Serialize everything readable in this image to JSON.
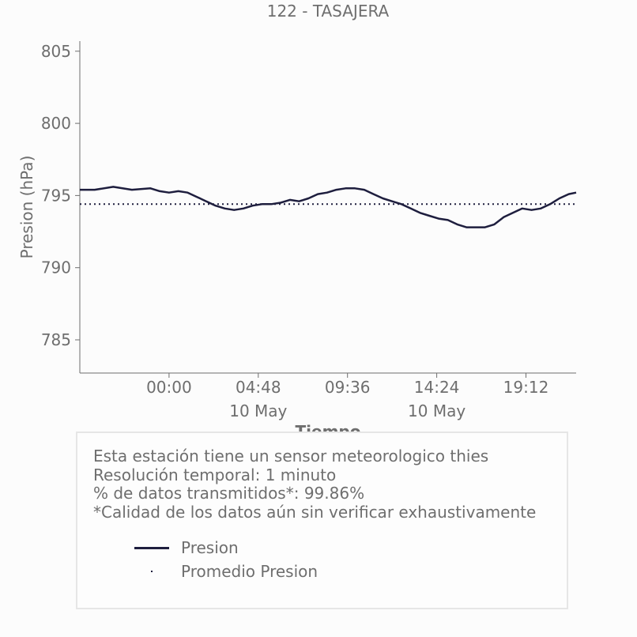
{
  "chart_data": {
    "type": "line",
    "title": "122 - TASAJERA",
    "xlabel": "Tiempo",
    "ylabel": "Presion (hPa)",
    "ylim": [
      782.7,
      805.7
    ],
    "yticks": [
      785,
      790,
      795,
      800,
      805
    ],
    "x_range_hours": [
      -4.8,
      21.9
    ],
    "xticks": [
      {
        "hour": 0.0,
        "label": "00:00",
        "sublabel": ""
      },
      {
        "hour": 4.8,
        "label": "04:48",
        "sublabel": "10 May"
      },
      {
        "hour": 9.6,
        "label": "09:36",
        "sublabel": ""
      },
      {
        "hour": 14.4,
        "label": "14:24",
        "sublabel": "10 May"
      },
      {
        "hour": 19.2,
        "label": "19:12",
        "sublabel": ""
      }
    ],
    "series": [
      {
        "name": "Presion",
        "style": "solid",
        "color": "#1e1e3e",
        "x": [
          -4.8,
          -4.0,
          -3.0,
          -2.0,
          -1.0,
          -0.5,
          0.0,
          0.5,
          1.0,
          1.5,
          2.0,
          2.5,
          3.0,
          3.5,
          4.0,
          4.5,
          5.0,
          5.5,
          6.0,
          6.5,
          7.0,
          7.5,
          8.0,
          8.5,
          9.0,
          9.5,
          10.0,
          10.5,
          11.0,
          11.5,
          12.0,
          12.5,
          13.0,
          13.5,
          14.0,
          14.5,
          15.0,
          15.5,
          16.0,
          16.5,
          17.0,
          17.5,
          18.0,
          18.5,
          19.0,
          19.5,
          20.0,
          20.5,
          21.0,
          21.5,
          21.9
        ],
        "y": [
          795.4,
          795.4,
          795.6,
          795.4,
          795.5,
          795.3,
          795.2,
          795.3,
          795.2,
          794.9,
          794.6,
          794.3,
          794.1,
          794.0,
          794.1,
          794.3,
          794.4,
          794.4,
          794.5,
          794.7,
          794.6,
          794.8,
          795.1,
          795.2,
          795.4,
          795.5,
          795.5,
          795.4,
          795.1,
          794.8,
          794.6,
          794.4,
          794.1,
          793.8,
          793.6,
          793.4,
          793.3,
          793.0,
          792.8,
          792.8,
          792.8,
          793.0,
          793.5,
          793.8,
          794.1,
          794.0,
          794.1,
          794.4,
          794.8,
          795.1,
          795.2
        ]
      },
      {
        "name": "Promedio Presion",
        "style": "dotted",
        "color": "#1e1e3e",
        "x": [
          -4.8,
          21.9
        ],
        "y": [
          794.4,
          794.4
        ]
      }
    ],
    "grid": false,
    "legend_position": "below"
  },
  "info": {
    "line1": "Esta estación tiene un sensor meteorologico thies",
    "line2": "Resolución temporal: 1 minuto",
    "line3": "% de datos transmitidos*: 99.86%",
    "line4": "*Calidad de los datos aún sin verificar exhaustivamente"
  },
  "legend": {
    "item1": "Presion",
    "item2": "Promedio Presion"
  },
  "colors": {
    "line": "#1e1e3e",
    "text": "#6e6e6e",
    "axis": "#6e6e6e"
  }
}
